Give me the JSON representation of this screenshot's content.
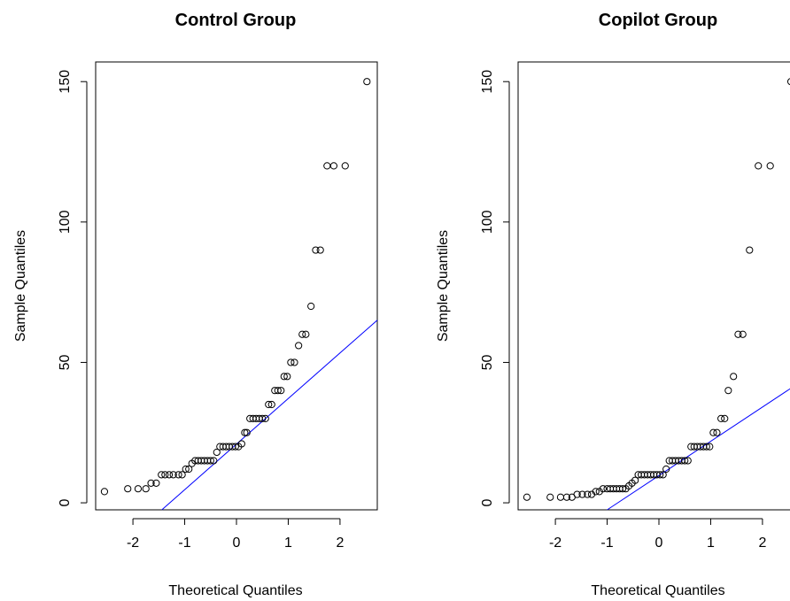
{
  "chart_data": [
    {
      "type": "scatter",
      "title": "Control Group",
      "xlabel": "Theoretical Quantiles",
      "ylabel": "Sample Quantiles",
      "xticks": [
        -2,
        -1,
        0,
        1,
        2
      ],
      "yticks": [
        0,
        50,
        100,
        150
      ],
      "xlim": [
        -2.72,
        2.72
      ],
      "ylim": [
        -2.5,
        157
      ],
      "grid": false,
      "reference_line": {
        "color": "#0000ff",
        "slope": 16.23,
        "intercept": 20.9
      },
      "series": [
        {
          "points": [
            [
              -2.55,
              4
            ],
            [
              -2.1,
              5
            ],
            [
              -1.9,
              5
            ],
            [
              -1.75,
              5
            ],
            [
              -1.65,
              7
            ],
            [
              -1.55,
              7
            ],
            [
              -1.45,
              10
            ],
            [
              -1.38,
              10
            ],
            [
              -1.3,
              10
            ],
            [
              -1.22,
              10
            ],
            [
              -1.12,
              10
            ],
            [
              -1.05,
              10
            ],
            [
              -0.98,
              12
            ],
            [
              -0.92,
              12
            ],
            [
              -0.86,
              14
            ],
            [
              -0.8,
              15
            ],
            [
              -0.74,
              15
            ],
            [
              -0.68,
              15
            ],
            [
              -0.62,
              15
            ],
            [
              -0.56,
              15
            ],
            [
              -0.5,
              15
            ],
            [
              -0.44,
              15
            ],
            [
              -0.38,
              18
            ],
            [
              -0.32,
              20
            ],
            [
              -0.26,
              20
            ],
            [
              -0.2,
              20
            ],
            [
              -0.14,
              20
            ],
            [
              -0.08,
              20
            ],
            [
              -0.02,
              20
            ],
            [
              0.04,
              20
            ],
            [
              0.1,
              21
            ],
            [
              0.16,
              25
            ],
            [
              0.2,
              25
            ],
            [
              0.26,
              30
            ],
            [
              0.32,
              30
            ],
            [
              0.38,
              30
            ],
            [
              0.44,
              30
            ],
            [
              0.5,
              30
            ],
            [
              0.56,
              30
            ],
            [
              0.62,
              35
            ],
            [
              0.68,
              35
            ],
            [
              0.74,
              40
            ],
            [
              0.8,
              40
            ],
            [
              0.86,
              40
            ],
            [
              0.92,
              45
            ],
            [
              0.98,
              45
            ],
            [
              1.05,
              50
            ],
            [
              1.12,
              50
            ],
            [
              1.2,
              56
            ],
            [
              1.27,
              60
            ],
            [
              1.34,
              60
            ],
            [
              1.44,
              70
            ],
            [
              1.53,
              90
            ],
            [
              1.62,
              90
            ],
            [
              1.75,
              120
            ],
            [
              1.88,
              120
            ],
            [
              2.1,
              120
            ],
            [
              2.52,
              150
            ]
          ]
        }
      ]
    },
    {
      "type": "scatter",
      "title": "Copilot Group",
      "xlabel": "Theoretical Quantiles",
      "ylabel": "Sample Quantiles",
      "xticks": [
        -2,
        -1,
        0,
        1,
        2
      ],
      "yticks": [
        0,
        50,
        100,
        150
      ],
      "xlim": [
        -2.72,
        2.72
      ],
      "ylim": [
        -2.5,
        157
      ],
      "grid": false,
      "reference_line": {
        "color": "#0000ff",
        "slope": 12.2,
        "intercept": 9.7
      },
      "series": [
        {
          "points": [
            [
              -2.55,
              2
            ],
            [
              -2.1,
              2
            ],
            [
              -1.9,
              2
            ],
            [
              -1.78,
              2
            ],
            [
              -1.68,
              2
            ],
            [
              -1.58,
              3
            ],
            [
              -1.48,
              3
            ],
            [
              -1.38,
              3
            ],
            [
              -1.3,
              3
            ],
            [
              -1.22,
              4
            ],
            [
              -1.15,
              4
            ],
            [
              -1.08,
              5
            ],
            [
              -1.0,
              5
            ],
            [
              -0.94,
              5
            ],
            [
              -0.88,
              5
            ],
            [
              -0.82,
              5
            ],
            [
              -0.76,
              5
            ],
            [
              -0.7,
              5
            ],
            [
              -0.64,
              5
            ],
            [
              -0.58,
              6
            ],
            [
              -0.52,
              7
            ],
            [
              -0.46,
              8
            ],
            [
              -0.4,
              10
            ],
            [
              -0.34,
              10
            ],
            [
              -0.28,
              10
            ],
            [
              -0.22,
              10
            ],
            [
              -0.16,
              10
            ],
            [
              -0.1,
              10
            ],
            [
              -0.04,
              10
            ],
            [
              0.02,
              10
            ],
            [
              0.08,
              10
            ],
            [
              0.14,
              12
            ],
            [
              0.2,
              15
            ],
            [
              0.26,
              15
            ],
            [
              0.32,
              15
            ],
            [
              0.38,
              15
            ],
            [
              0.44,
              15
            ],
            [
              0.5,
              15
            ],
            [
              0.56,
              15
            ],
            [
              0.62,
              20
            ],
            [
              0.68,
              20
            ],
            [
              0.74,
              20
            ],
            [
              0.8,
              20
            ],
            [
              0.86,
              20
            ],
            [
              0.92,
              20
            ],
            [
              0.98,
              20
            ],
            [
              1.05,
              25
            ],
            [
              1.12,
              25
            ],
            [
              1.2,
              30
            ],
            [
              1.27,
              30
            ],
            [
              1.34,
              40
            ],
            [
              1.44,
              45
            ],
            [
              1.53,
              60
            ],
            [
              1.62,
              60
            ],
            [
              1.75,
              90
            ],
            [
              1.92,
              120
            ],
            [
              2.15,
              120
            ],
            [
              2.55,
              150
            ]
          ]
        }
      ]
    }
  ]
}
